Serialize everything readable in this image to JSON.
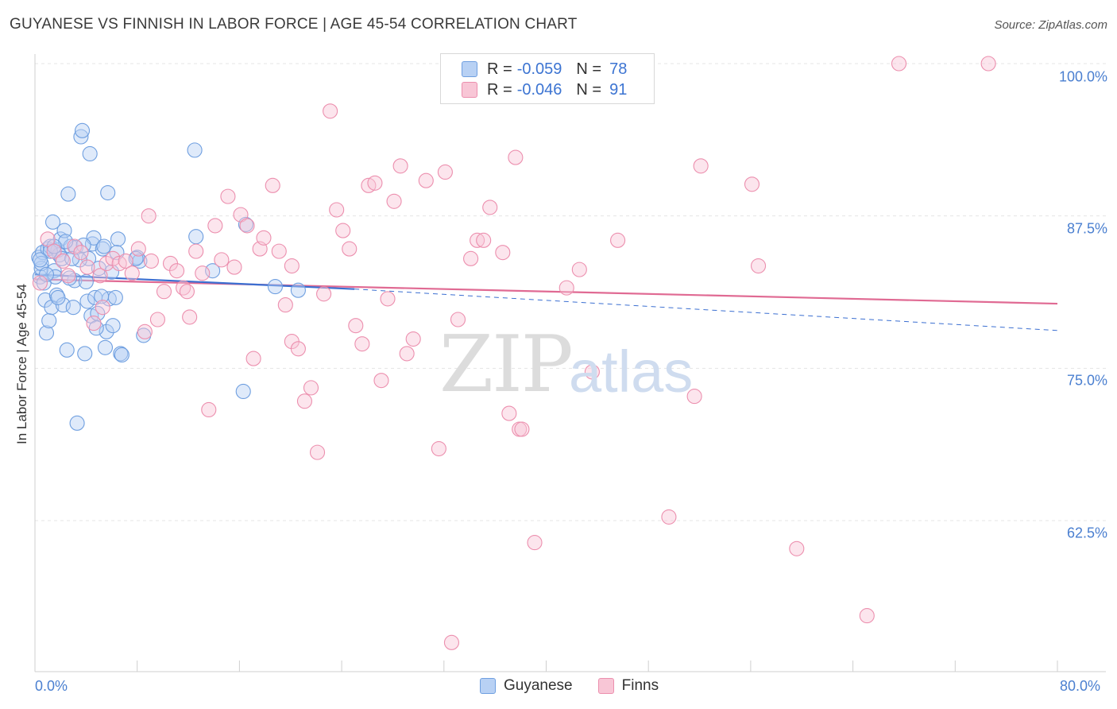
{
  "header": {
    "title": "GUYANESE VS FINNISH IN LABOR FORCE | AGE 45-54 CORRELATION CHART",
    "source": "Source: ZipAtlas.com"
  },
  "watermark": {
    "zip": "ZIP",
    "atlas": "atlas"
  },
  "legend_top": {
    "rows": [
      {
        "label": "R =",
        "r": "-0.059",
        "n_label": "N =",
        "n": "78"
      },
      {
        "label": "R =",
        "r": "-0.046",
        "n_label": "N =",
        "n": "91"
      }
    ]
  },
  "legend_bottom": {
    "series1": "Guyanese",
    "series2": "Finns"
  },
  "chart_data": {
    "type": "scatter",
    "title": "GUYANESE VS FINNISH IN LABOR FORCE | AGE 45-54 CORRELATION CHART",
    "xlabel": "",
    "ylabel": "In Labor Force | Age 45-54",
    "xlim": [
      0,
      80
    ],
    "ylim": [
      50,
      102
    ],
    "x_tick_labels": [
      "0.0%",
      "80.0%"
    ],
    "y_ticks": [
      62.5,
      75.0,
      87.5,
      100.0
    ],
    "y_tick_labels": [
      "62.5%",
      "75.0%",
      "87.5%",
      "100.0%"
    ],
    "grid": true,
    "colors": {
      "guyanese": "#6f9fe0",
      "guyanese_fill": "#b8d1f4",
      "guyanese_line": "#3b6fd1",
      "finns": "#ec8fae",
      "finns_fill": "#f8c6d6",
      "finns_line": "#e06a93"
    },
    "series": [
      {
        "name": "Guyanese",
        "R": -0.059,
        "N": 78,
        "trend": {
          "x": [
            0,
            25
          ],
          "y": [
            82.7,
            81.5
          ],
          "dashed_to": [
            80,
            78.1
          ]
        },
        "points": [
          [
            0.3,
            84.1
          ],
          [
            0.4,
            82.5
          ],
          [
            0.5,
            83.2
          ],
          [
            0.6,
            84.5
          ],
          [
            0.7,
            82.0
          ],
          [
            0.8,
            80.6
          ],
          [
            0.9,
            77.9
          ],
          [
            1.0,
            84.8
          ],
          [
            1.1,
            78.9
          ],
          [
            1.2,
            85.0
          ],
          [
            1.3,
            80.0
          ],
          [
            1.4,
            87.0
          ],
          [
            1.5,
            83.0
          ],
          [
            1.6,
            82.5
          ],
          [
            1.7,
            81.0
          ],
          [
            1.8,
            84.7
          ],
          [
            1.9,
            84.3
          ],
          [
            2.0,
            85.6
          ],
          [
            2.1,
            84.0
          ],
          [
            2.2,
            80.2
          ],
          [
            2.3,
            86.3
          ],
          [
            2.5,
            76.5
          ],
          [
            2.6,
            89.3
          ],
          [
            2.8,
            85.0
          ],
          [
            3.0,
            80.0
          ],
          [
            3.1,
            82.2
          ],
          [
            3.2,
            84.9
          ],
          [
            3.3,
            70.5
          ],
          [
            3.6,
            94.0
          ],
          [
            3.7,
            94.5
          ],
          [
            3.9,
            76.2
          ],
          [
            4.0,
            82.1
          ],
          [
            4.1,
            80.5
          ],
          [
            4.2,
            84.0
          ],
          [
            4.3,
            92.6
          ],
          [
            4.4,
            79.3
          ],
          [
            4.5,
            85.2
          ],
          [
            4.6,
            85.7
          ],
          [
            4.7,
            80.8
          ],
          [
            4.9,
            79.5
          ],
          [
            5.0,
            83.2
          ],
          [
            5.3,
            84.8
          ],
          [
            5.4,
            85.0
          ],
          [
            5.5,
            76.7
          ],
          [
            5.6,
            78.0
          ],
          [
            5.7,
            89.4
          ],
          [
            5.8,
            80.7
          ],
          [
            6.0,
            82.9
          ],
          [
            6.1,
            78.5
          ],
          [
            6.3,
            80.8
          ],
          [
            6.5,
            85.6
          ],
          [
            6.7,
            76.2
          ],
          [
            6.8,
            76.1
          ],
          [
            8.0,
            84.1
          ],
          [
            8.2,
            83.8
          ],
          [
            8.5,
            77.7
          ],
          [
            12.5,
            92.9
          ],
          [
            12.6,
            85.8
          ],
          [
            13.9,
            83.0
          ],
          [
            16.3,
            73.1
          ],
          [
            16.5,
            86.8
          ],
          [
            18.8,
            81.7
          ],
          [
            20.6,
            81.4
          ],
          [
            0.5,
            83.6
          ],
          [
            1.2,
            84.6
          ],
          [
            2.4,
            85.4
          ],
          [
            3.5,
            83.9
          ],
          [
            1.8,
            80.8
          ],
          [
            0.9,
            82.7
          ],
          [
            2.7,
            82.4
          ],
          [
            3.8,
            85.1
          ],
          [
            5.2,
            80.9
          ],
          [
            0.4,
            83.9
          ],
          [
            1.5,
            85.0
          ],
          [
            2.9,
            84.0
          ],
          [
            4.8,
            78.3
          ],
          [
            6.4,
            84.5
          ],
          [
            7.9,
            84.0
          ]
        ]
      },
      {
        "name": "Finns",
        "R": -0.046,
        "N": 91,
        "trend": {
          "x": [
            0,
            80
          ],
          "y": [
            82.3,
            80.3
          ]
        },
        "points": [
          [
            0.4,
            82.0
          ],
          [
            1.0,
            85.6
          ],
          [
            1.5,
            84.6
          ],
          [
            2.2,
            83.8
          ],
          [
            2.6,
            82.6
          ],
          [
            3.1,
            85.0
          ],
          [
            3.6,
            84.5
          ],
          [
            4.1,
            83.3
          ],
          [
            4.6,
            78.7
          ],
          [
            5.1,
            82.6
          ],
          [
            5.6,
            83.6
          ],
          [
            6.1,
            84.0
          ],
          [
            6.6,
            83.6
          ],
          [
            7.1,
            83.8
          ],
          [
            7.6,
            82.8
          ],
          [
            8.1,
            84.8
          ],
          [
            8.6,
            78.0
          ],
          [
            8.9,
            87.5
          ],
          [
            9.6,
            79.0
          ],
          [
            10.1,
            81.3
          ],
          [
            10.6,
            83.6
          ],
          [
            11.1,
            83.0
          ],
          [
            11.6,
            81.6
          ],
          [
            11.9,
            81.3
          ],
          [
            12.6,
            84.6
          ],
          [
            13.1,
            82.8
          ],
          [
            13.6,
            71.6
          ],
          [
            14.1,
            86.7
          ],
          [
            14.6,
            83.9
          ],
          [
            15.1,
            89.1
          ],
          [
            15.6,
            83.3
          ],
          [
            16.1,
            87.6
          ],
          [
            16.6,
            86.7
          ],
          [
            17.1,
            75.8
          ],
          [
            17.6,
            84.8
          ],
          [
            17.9,
            85.7
          ],
          [
            18.6,
            90.0
          ],
          [
            19.1,
            84.6
          ],
          [
            19.6,
            80.2
          ],
          [
            20.1,
            77.2
          ],
          [
            20.6,
            76.6
          ],
          [
            21.1,
            72.3
          ],
          [
            21.6,
            73.4
          ],
          [
            22.1,
            68.1
          ],
          [
            22.6,
            81.1
          ],
          [
            23.1,
            96.1
          ],
          [
            23.6,
            88.0
          ],
          [
            24.1,
            86.3
          ],
          [
            24.6,
            84.8
          ],
          [
            25.1,
            78.5
          ],
          [
            25.6,
            77.0
          ],
          [
            26.1,
            90.0
          ],
          [
            26.6,
            90.2
          ],
          [
            27.1,
            74.0
          ],
          [
            27.6,
            80.7
          ],
          [
            28.1,
            88.7
          ],
          [
            28.6,
            91.6
          ],
          [
            29.1,
            76.2
          ],
          [
            29.6,
            77.4
          ],
          [
            30.6,
            90.4
          ],
          [
            31.6,
            68.4
          ],
          [
            32.1,
            91.1
          ],
          [
            32.6,
            52.5
          ],
          [
            33.1,
            79.0
          ],
          [
            34.1,
            84.0
          ],
          [
            34.6,
            85.5
          ],
          [
            35.1,
            85.5
          ],
          [
            35.6,
            88.2
          ],
          [
            36.6,
            84.5
          ],
          [
            37.1,
            71.3
          ],
          [
            37.6,
            92.3
          ],
          [
            37.9,
            70.0
          ],
          [
            38.1,
            70.0
          ],
          [
            39.1,
            60.7
          ],
          [
            41.6,
            81.6
          ],
          [
            42.6,
            83.1
          ],
          [
            43.6,
            74.7
          ],
          [
            45.6,
            85.5
          ],
          [
            49.6,
            62.8
          ],
          [
            51.6,
            72.7
          ],
          [
            52.1,
            91.6
          ],
          [
            56.1,
            90.1
          ],
          [
            56.6,
            83.4
          ],
          [
            59.6,
            60.2
          ],
          [
            65.1,
            54.7
          ],
          [
            67.6,
            100.0
          ],
          [
            74.6,
            100.0
          ],
          [
            20.1,
            83.4
          ],
          [
            12.1,
            79.2
          ],
          [
            9.1,
            83.8
          ],
          [
            5.3,
            80.0
          ]
        ]
      }
    ]
  }
}
